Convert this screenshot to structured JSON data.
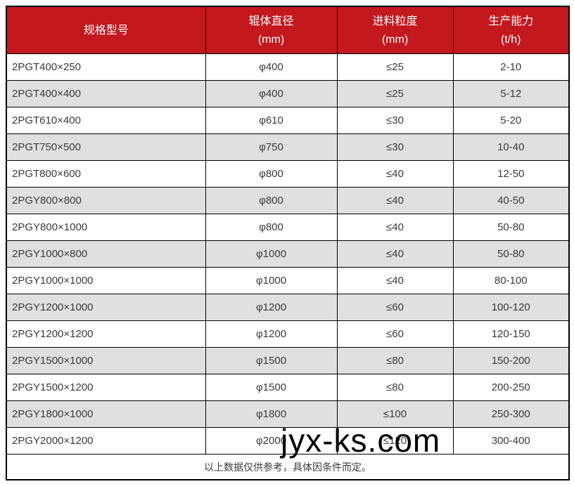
{
  "colors": {
    "header_bg": "#c2181e",
    "header_text": "#ffffff",
    "row_bg": "#ffffff",
    "row_alt_bg": "#e0e0e0",
    "border": "#000000",
    "body_text": "#3a3a3a"
  },
  "table": {
    "columns": [
      {
        "id": "model",
        "line1": "规格型号",
        "line2": ""
      },
      {
        "id": "diameter",
        "line1": "辊体直径",
        "line2": "(mm)"
      },
      {
        "id": "feed",
        "line1": "进料粒度",
        "line2": "(mm)"
      },
      {
        "id": "capacity",
        "line1": "生产能力",
        "line2": "(t/h)"
      }
    ],
    "rows": [
      {
        "model": "2PGT400×250",
        "diameter": "φ400",
        "feed": "≤25",
        "capacity": "2-10"
      },
      {
        "model": "2PGT400×400",
        "diameter": "φ400",
        "feed": "≤25",
        "capacity": "5-12"
      },
      {
        "model": "2PGT610×400",
        "diameter": "φ610",
        "feed": "≤30",
        "capacity": "5-20"
      },
      {
        "model": "2PGT750×500",
        "diameter": "φ750",
        "feed": "≤30",
        "capacity": "10-40"
      },
      {
        "model": "2PGT800×600",
        "diameter": "φ800",
        "feed": "≤40",
        "capacity": "12-50"
      },
      {
        "model": "2PGY800×800",
        "diameter": "φ800",
        "feed": "≤40",
        "capacity": "40-50"
      },
      {
        "model": "2PGY800×1000",
        "diameter": "φ800",
        "feed": "≤40",
        "capacity": "50-80"
      },
      {
        "model": "2PGY1000×800",
        "diameter": "φ1000",
        "feed": "≤40",
        "capacity": "50-80"
      },
      {
        "model": "2PGY1000×1000",
        "diameter": "φ1000",
        "feed": "≤40",
        "capacity": "80-100"
      },
      {
        "model": "2PGY1200×1000",
        "diameter": "φ1200",
        "feed": "≤60",
        "capacity": "100-120"
      },
      {
        "model": "2PGY1200×1200",
        "diameter": "φ1200",
        "feed": "≤60",
        "capacity": "120-150"
      },
      {
        "model": "2PGY1500×1000",
        "diameter": "φ1500",
        "feed": "≤80",
        "capacity": "150-200"
      },
      {
        "model": "2PGY1500×1200",
        "diameter": "φ1500",
        "feed": "≤80",
        "capacity": "200-250"
      },
      {
        "model": "2PGY1800×1000",
        "diameter": "φ1800",
        "feed": "≤100",
        "capacity": "250-300"
      },
      {
        "model": "2PGY2000×1200",
        "diameter": "φ2000",
        "feed": "≤120",
        "capacity": "300-400"
      }
    ],
    "footer_note": "以上数据仅供参考，具体因条件而定。"
  },
  "watermark": {
    "text": "jyx-ks.com"
  }
}
